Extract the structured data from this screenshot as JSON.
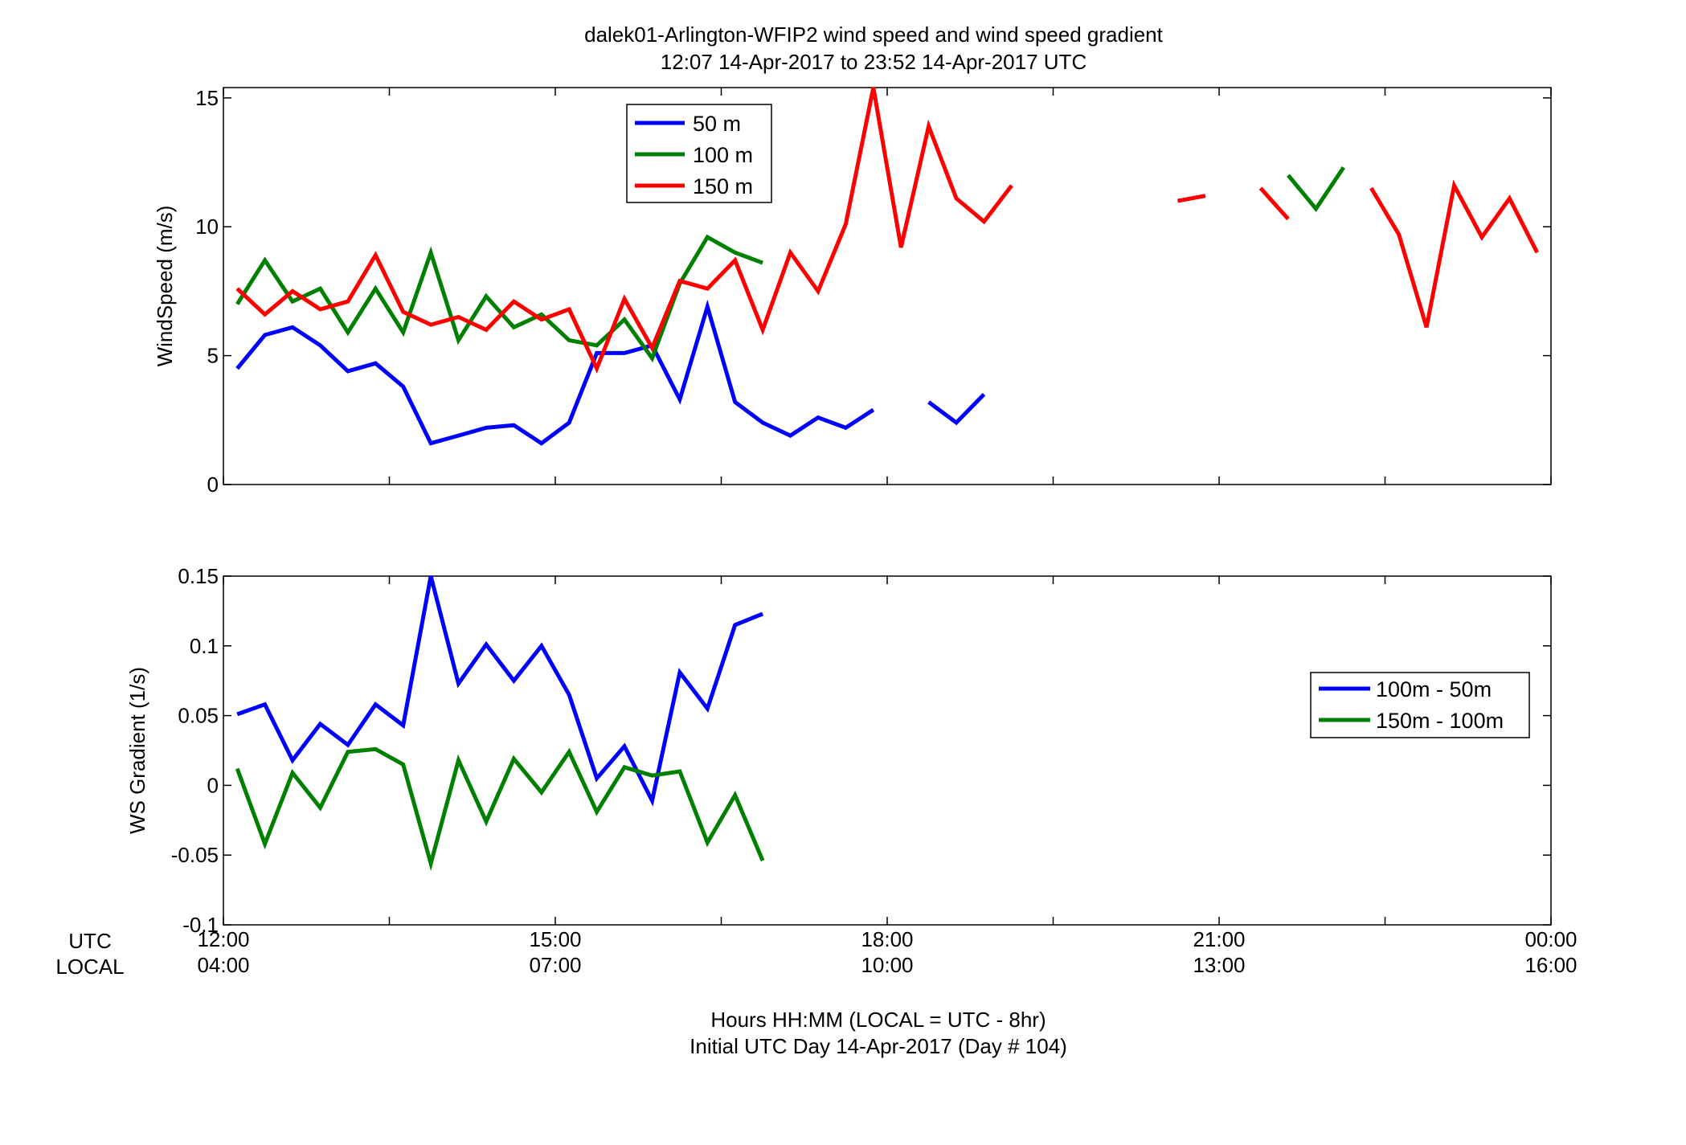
{
  "title_line1": "dalek01-Arlington-WFIP2  wind speed and wind speed gradient",
  "title_line2": "12:07 14-Apr-2017 to 23:52 14-Apr-2017  UTC",
  "xaxis": {
    "row1_label": "UTC",
    "row2_label": "LOCAL",
    "utc_ticks": [
      "12:00",
      "15:00",
      "18:00",
      "21:00",
      "00:00"
    ],
    "local_ticks": [
      "04:00",
      "07:00",
      "10:00",
      "13:00",
      "16:00"
    ],
    "label_line1": "Hours HH:MM  (LOCAL = UTC - 8hr)",
    "label_line2": "Initial UTC Day 14-Apr-2017 (Day # 104)"
  },
  "colors": {
    "blue": "#0000ff",
    "green": "#008000",
    "red": "#ff0000"
  },
  "chart_data": [
    {
      "type": "line",
      "ylabel": "WindSpeed (m/s)",
      "xlim_hours": [
        12,
        24
      ],
      "ylim": [
        0,
        15.4
      ],
      "yticks": [
        0,
        5,
        10,
        15
      ],
      "legend_position": "top-center",
      "x_hours": [
        12.125,
        12.375,
        12.625,
        12.875,
        13.125,
        13.375,
        13.625,
        13.875,
        14.125,
        14.375,
        14.625,
        14.875,
        15.125,
        15.375,
        15.625,
        15.875,
        16.125,
        16.375,
        16.625,
        16.875,
        17.125,
        17.375,
        17.625,
        17.875,
        18.125,
        18.375,
        18.625,
        18.875,
        19.125,
        19.375,
        19.625,
        19.875,
        20.125,
        20.375,
        20.625,
        20.875,
        21.125,
        21.375,
        21.625,
        21.875,
        22.125,
        22.375,
        22.625,
        22.875,
        23.125,
        23.375,
        23.625,
        23.875
      ],
      "series": [
        {
          "name": "50 m",
          "color": "#0000ff",
          "values": [
            4.5,
            5.8,
            6.1,
            5.4,
            4.4,
            4.7,
            3.8,
            1.6,
            1.9,
            2.2,
            2.3,
            1.6,
            2.4,
            5.1,
            5.1,
            5.4,
            3.3,
            6.9,
            3.2,
            2.4,
            1.9,
            2.6,
            2.2,
            2.9,
            null,
            3.2,
            2.4,
            3.5,
            null,
            null,
            null,
            null,
            null,
            null,
            null,
            null,
            null,
            null,
            null,
            null,
            null,
            null,
            null,
            null,
            null,
            null,
            null,
            null
          ]
        },
        {
          "name": "100 m",
          "color": "#008000",
          "values": [
            7.0,
            8.7,
            7.1,
            7.6,
            5.9,
            7.6,
            5.9,
            9.0,
            5.6,
            7.3,
            6.1,
            6.6,
            5.6,
            5.4,
            6.4,
            4.9,
            7.8,
            9.6,
            9.0,
            8.6,
            null,
            null,
            null,
            null,
            null,
            null,
            null,
            null,
            null,
            null,
            null,
            null,
            null,
            null,
            null,
            null,
            null,
            null,
            12.0,
            10.7,
            12.3,
            null,
            null,
            null,
            null,
            null,
            null,
            null
          ]
        },
        {
          "name": "150 m",
          "color": "#ff0000",
          "values": [
            7.6,
            6.6,
            7.5,
            6.8,
            7.1,
            8.9,
            6.7,
            6.2,
            6.5,
            6.0,
            7.1,
            6.4,
            6.8,
            4.5,
            7.2,
            5.3,
            7.9,
            7.6,
            8.7,
            6.0,
            9.0,
            7.5,
            10.1,
            15.4,
            9.2,
            13.9,
            11.1,
            10.2,
            11.6,
            null,
            null,
            null,
            null,
            null,
            11.0,
            11.2,
            null,
            11.5,
            10.3,
            null,
            null,
            11.5,
            9.7,
            6.1,
            11.6,
            9.6,
            11.1,
            9.0
          ]
        }
      ]
    },
    {
      "type": "line",
      "ylabel": "WS Gradient (1/s)",
      "xlim_hours": [
        12,
        24
      ],
      "ylim": [
        -0.1,
        0.15
      ],
      "yticks": [
        -0.1,
        -0.05,
        0,
        0.05,
        0.1,
        0.15
      ],
      "ytick_labels": [
        "-0.1",
        "-0.05",
        "0",
        "0.05",
        "0.1",
        "0.15"
      ],
      "legend_position": "right",
      "x_hours": [
        12.125,
        12.375,
        12.625,
        12.875,
        13.125,
        13.375,
        13.625,
        13.875,
        14.125,
        14.375,
        14.625,
        14.875,
        15.125,
        15.375,
        15.625,
        15.875,
        16.125,
        16.375,
        16.625,
        16.875
      ],
      "series": [
        {
          "name": "100m - 50m",
          "color": "#0000ff",
          "values": [
            0.051,
            0.058,
            0.018,
            0.044,
            0.029,
            0.058,
            0.043,
            0.15,
            0.073,
            0.101,
            0.075,
            0.1,
            0.065,
            0.005,
            0.028,
            -0.011,
            0.081,
            0.055,
            0.115,
            0.123
          ]
        },
        {
          "name": "150m - 100m",
          "color": "#008000",
          "values": [
            0.012,
            -0.042,
            0.009,
            -0.016,
            0.024,
            0.026,
            0.015,
            -0.056,
            0.018,
            -0.026,
            0.019,
            -0.005,
            0.024,
            -0.019,
            0.013,
            0.007,
            0.01,
            -0.041,
            -0.007,
            -0.054
          ]
        }
      ]
    }
  ]
}
